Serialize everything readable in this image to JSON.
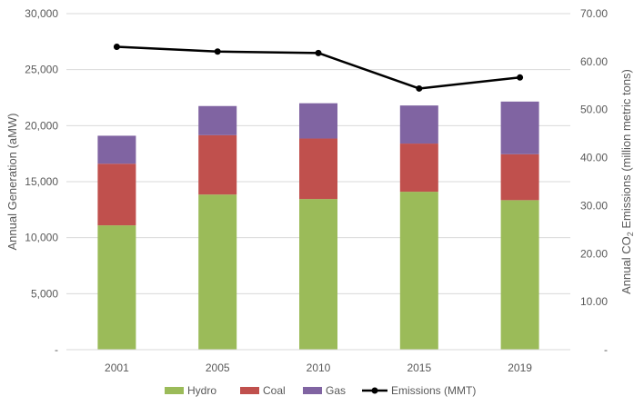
{
  "chart_data": {
    "type": "bar",
    "stacked": true,
    "categories": [
      "2001",
      "2005",
      "2010",
      "2015",
      "2019"
    ],
    "series": [
      {
        "name": "Hydro",
        "color": "#9BBB59",
        "values": [
          11100,
          13850,
          13450,
          14100,
          13350
        ]
      },
      {
        "name": "Coal",
        "color": "#C0504D",
        "values": [
          5500,
          5300,
          5400,
          4300,
          4100
        ]
      },
      {
        "name": "Gas",
        "color": "#8064A2",
        "values": [
          2500,
          2600,
          3150,
          3400,
          4700
        ]
      }
    ],
    "line_series": {
      "name": "Emissions (MMT)",
      "color": "#000000",
      "axis": "right",
      "values": [
        63.1,
        62.1,
        61.8,
        54.4,
        56.7
      ]
    },
    "ylabel": "Annual Generation (aMW)",
    "y2label_parts": {
      "before": "Annual CO",
      "sub": "2",
      "after": " Emissions (million metric tons)"
    },
    "ylim": [
      0,
      30000
    ],
    "y2lim": [
      0,
      70
    ],
    "yticks": [
      "-",
      "5,000",
      "10,000",
      "15,000",
      "20,000",
      "25,000",
      "30,000"
    ],
    "y2ticks": [
      "-",
      "10.00",
      "20.00",
      "30.00",
      "40.00",
      "50.00",
      "60.00",
      "70.00"
    ],
    "grid": true,
    "legend_position": "bottom"
  }
}
